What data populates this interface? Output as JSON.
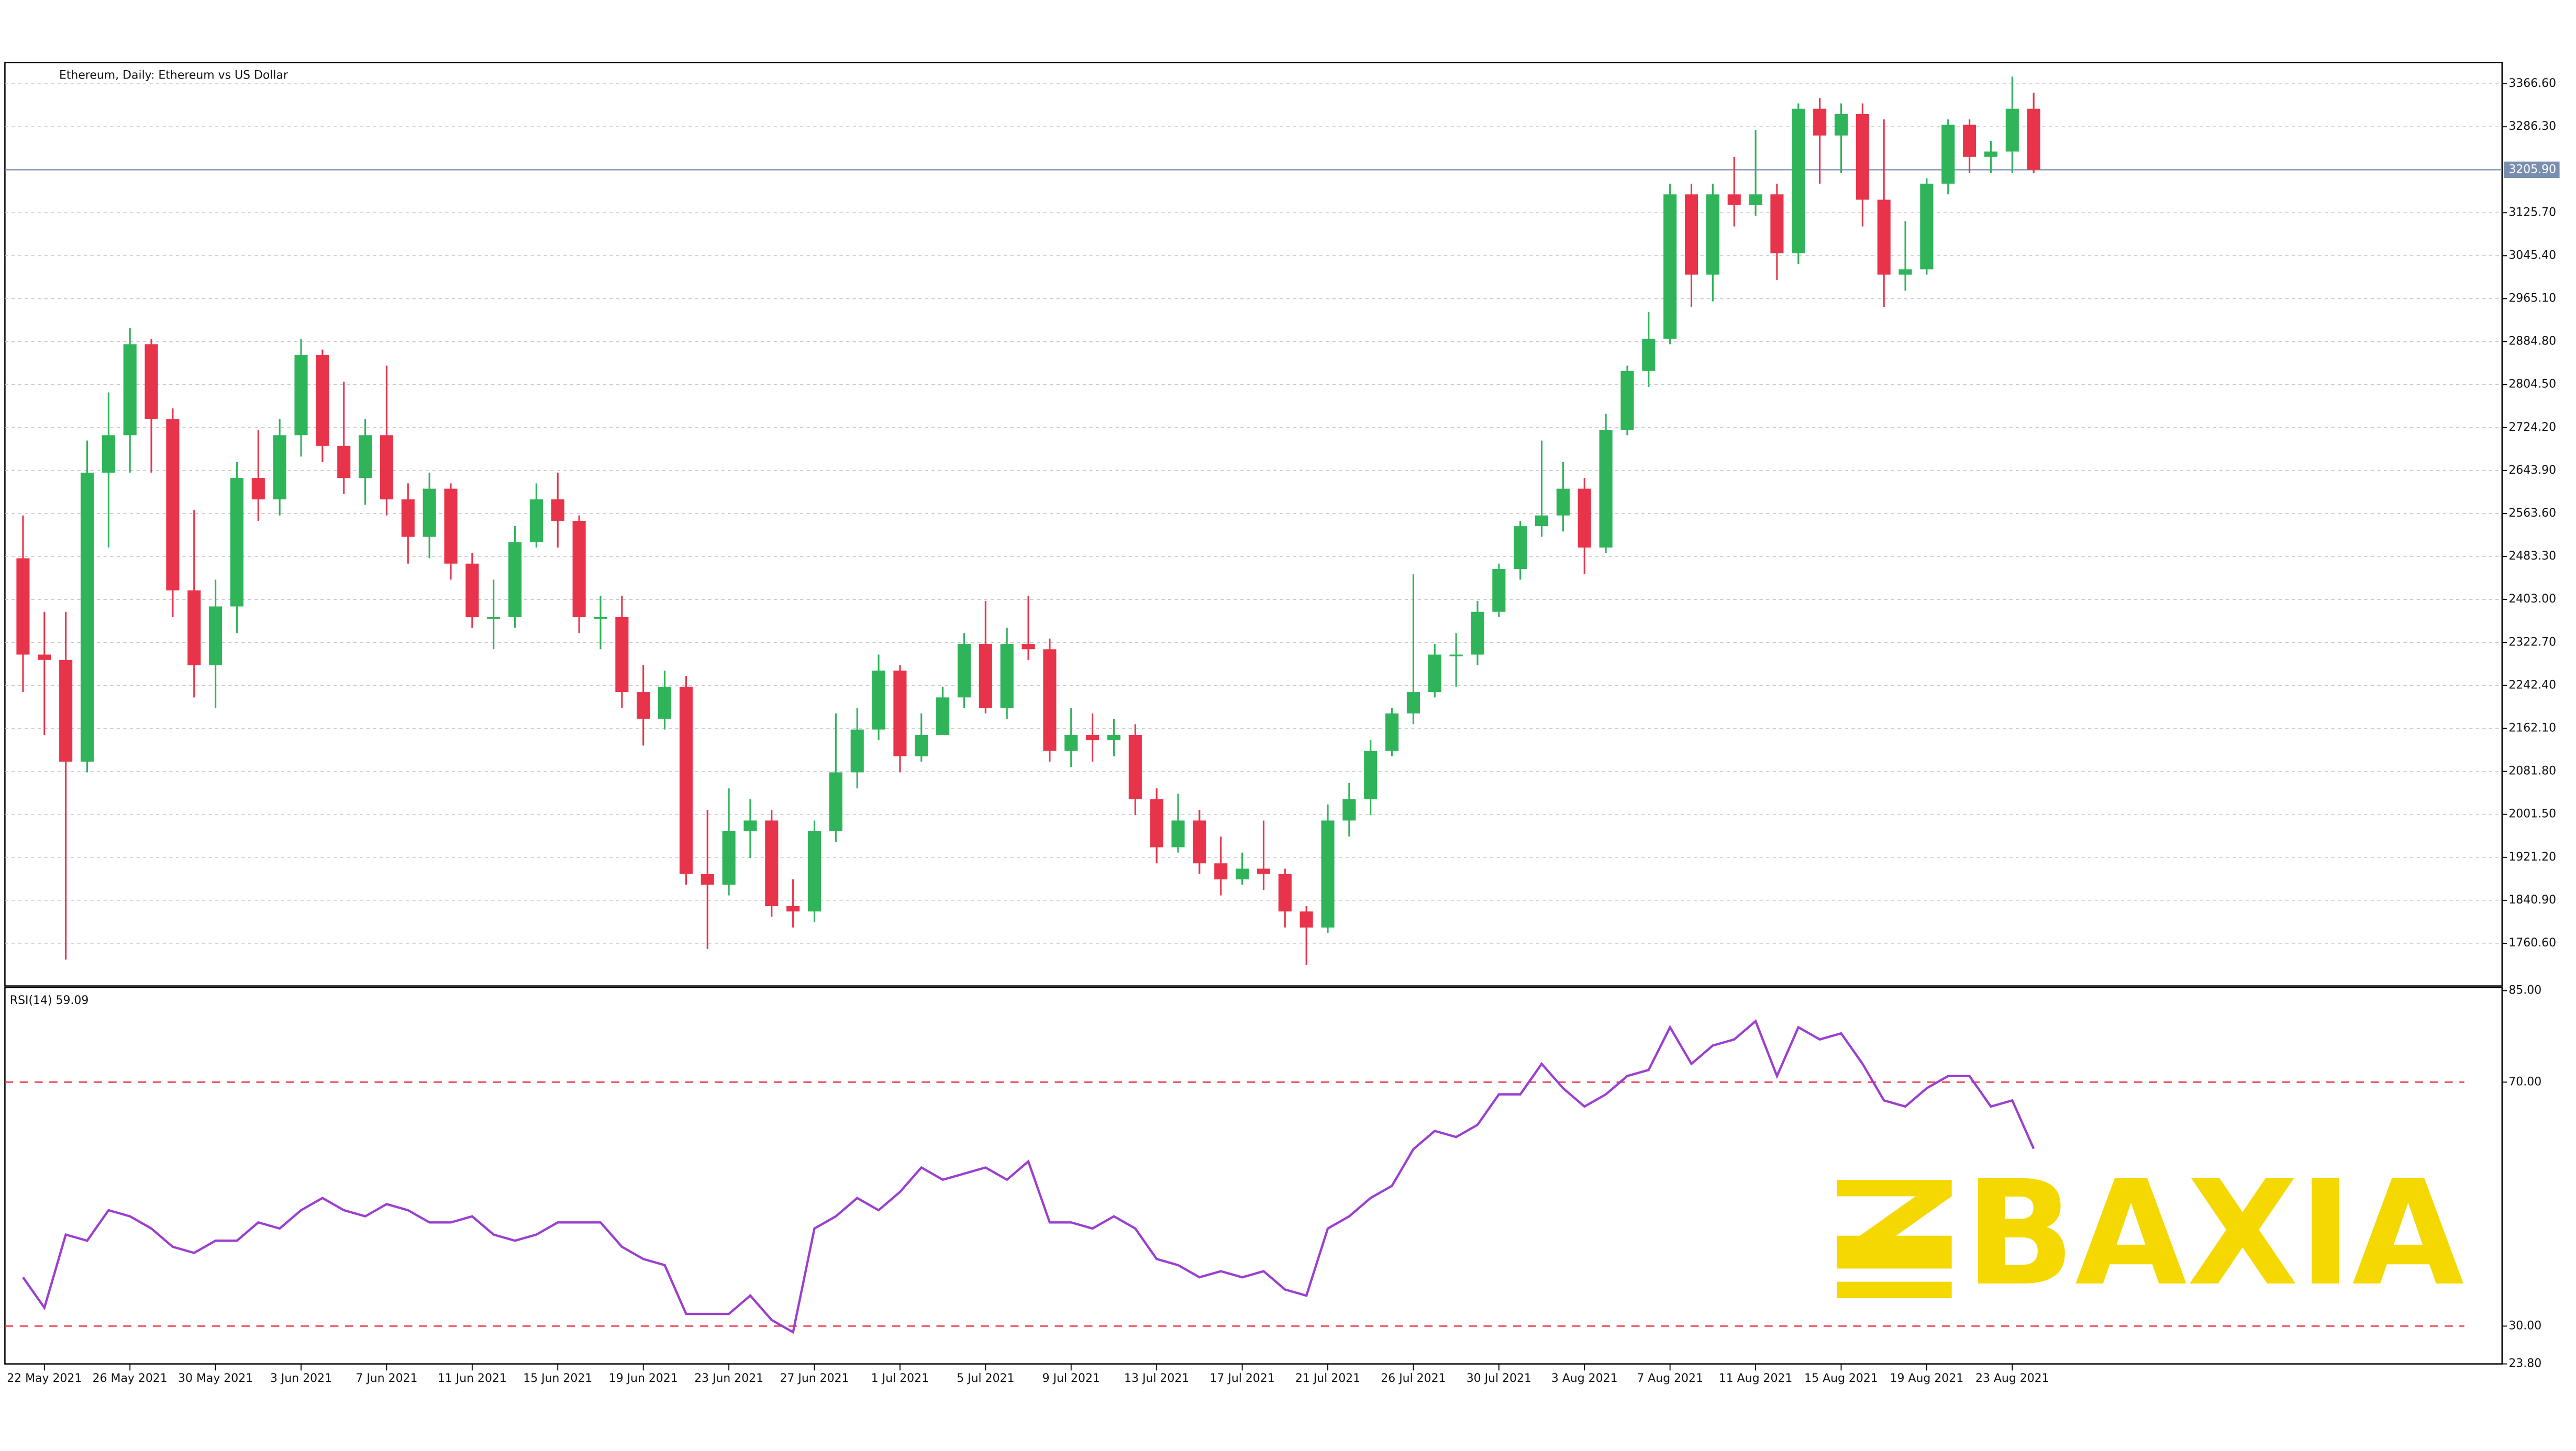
{
  "chart_data": [
    {
      "type": "candlestick",
      "title": "Ethereum, Daily:  Ethereum vs US Dollar",
      "categories": [
        null,
        "22 May 2021",
        null,
        null,
        null,
        "26 May 2021",
        null,
        null,
        null,
        "30 May 2021",
        null,
        null,
        null,
        "3 Jun 2021",
        null,
        null,
        null,
        "7 Jun 2021",
        null,
        null,
        null,
        "11 Jun 2021",
        null,
        null,
        null,
        "15 Jun 2021",
        null,
        null,
        null,
        "19 Jun 2021",
        null,
        null,
        null,
        "23 Jun 2021",
        null,
        null,
        null,
        "27 Jun 2021",
        null,
        null,
        null,
        "1 Jul 2021",
        null,
        null,
        null,
        "5 Jul 2021",
        null,
        null,
        null,
        "9 Jul 2021",
        null,
        null,
        null,
        "13 Jul 2021",
        null,
        null,
        null,
        "17 Jul 2021",
        null,
        null,
        null,
        "21 Jul 2021",
        null,
        null,
        null,
        "26 Jul 2021",
        null,
        null,
        null,
        "30 Jul 2021",
        null,
        null,
        null,
        "3 Aug 2021",
        null,
        null,
        null,
        "7 Aug 2021",
        null,
        null,
        null,
        "11 Aug 2021",
        null,
        null,
        null,
        "15 Aug 2021",
        null,
        null,
        null,
        "19 Aug 2021",
        null,
        null,
        null,
        "23 Aug 2021",
        null
      ],
      "open": [
        2480,
        2300,
        2290,
        2100,
        2640,
        2710,
        2880,
        2740,
        2420,
        2280,
        2390,
        2630,
        2590,
        2710,
        2860,
        2690,
        2630,
        2710,
        2590,
        2520,
        2610,
        2470,
        2370,
        2370,
        2510,
        2590,
        2550,
        2370,
        2370,
        2230,
        2180,
        2240,
        1890,
        1870,
        1970,
        1990,
        1830,
        1820,
        1970,
        2080,
        2160,
        2270,
        2110,
        2150,
        2220,
        2320,
        2200,
        2320,
        2310,
        2120,
        2150,
        2140,
        2150,
        2030,
        1940,
        1990,
        1910,
        1880,
        1900,
        1890,
        1820,
        1790,
        1990,
        2030,
        2120,
        2190,
        2230,
        2300,
        2300,
        2380,
        2460,
        2540,
        2560,
        2610,
        2500,
        2720,
        2830,
        2890,
        3160,
        3010,
        3160,
        3140,
        3160,
        3050,
        3320,
        3270,
        3310,
        3150,
        3010,
        3020,
        3180,
        3290,
        3230,
        3240,
        3320
      ],
      "high": [
        2560,
        2380,
        2380,
        2700,
        2790,
        2910,
        2890,
        2760,
        2570,
        2440,
        2660,
        2720,
        2740,
        2890,
        2870,
        2810,
        2740,
        2840,
        2620,
        2640,
        2620,
        2490,
        2440,
        2540,
        2620,
        2640,
        2560,
        2410,
        2410,
        2280,
        2270,
        2260,
        2010,
        2050,
        2030,
        2010,
        1880,
        1990,
        2190,
        2200,
        2300,
        2280,
        2190,
        2240,
        2340,
        2400,
        2350,
        2410,
        2330,
        2200,
        2190,
        2180,
        2170,
        2050,
        2040,
        2010,
        1960,
        1930,
        1990,
        1900,
        1830,
        2020,
        2060,
        2140,
        2200,
        2450,
        2320,
        2340,
        2400,
        2470,
        2550,
        2700,
        2660,
        2630,
        2750,
        2840,
        2940,
        3180,
        3180,
        3180,
        3230,
        3280,
        3180,
        3330,
        3340,
        3330,
        3330,
        3300,
        3110,
        3190,
        3300,
        3300,
        3260,
        3380,
        3350
      ],
      "low": [
        2230,
        2150,
        1730,
        2080,
        2500,
        2640,
        2640,
        2370,
        2220,
        2200,
        2340,
        2550,
        2560,
        2670,
        2660,
        2600,
        2580,
        2560,
        2470,
        2480,
        2440,
        2350,
        2310,
        2350,
        2500,
        2500,
        2340,
        2310,
        2200,
        2130,
        2160,
        1870,
        1750,
        1850,
        1920,
        1810,
        1790,
        1800,
        1950,
        2050,
        2140,
        2080,
        2100,
        2150,
        2200,
        2190,
        2180,
        2290,
        2100,
        2090,
        2100,
        2110,
        2000,
        1910,
        1930,
        1890,
        1850,
        1870,
        1860,
        1790,
        1720,
        1780,
        1960,
        2000,
        2110,
        2170,
        2220,
        2240,
        2280,
        2370,
        2440,
        2520,
        2530,
        2450,
        2490,
        2710,
        2800,
        2880,
        2950,
        2960,
        3100,
        3120,
        3000,
        3030,
        3180,
        3200,
        3100,
        2950,
        2980,
        3010,
        3160,
        3200,
        3200,
        3200,
        3200
      ],
      "close": [
        2300,
        2290,
        2100,
        2640,
        2710,
        2880,
        2740,
        2420,
        2280,
        2390,
        2630,
        2590,
        2710,
        2860,
        2690,
        2630,
        2710,
        2590,
        2520,
        2610,
        2470,
        2370,
        2370,
        2510,
        2590,
        2550,
        2370,
        2370,
        2230,
        2180,
        2240,
        1890,
        1870,
        1970,
        1990,
        1830,
        1820,
        1970,
        2080,
        2160,
        2270,
        2110,
        2150,
        2220,
        2320,
        2200,
        2320,
        2310,
        2120,
        2150,
        2140,
        2150,
        2030,
        1940,
        1990,
        1910,
        1880,
        1900,
        1890,
        1820,
        1790,
        1990,
        2030,
        2120,
        2190,
        2230,
        2300,
        2300,
        2380,
        2460,
        2540,
        2560,
        2610,
        2500,
        2720,
        2830,
        2890,
        3160,
        3010,
        3160,
        3140,
        3160,
        3050,
        3320,
        3270,
        3310,
        3150,
        3010,
        3020,
        3180,
        3290,
        3230,
        3240,
        3320,
        3206
      ],
      "up_color": "#2fb45a",
      "down_color": "#e8344a",
      "ylim": [
        1680.8,
        3406.5
      ],
      "yticks": [
        {
          "value": 1760.6,
          "label": "1760.60"
        },
        {
          "value": 1840.9,
          "label": "1840.90"
        },
        {
          "value": 1921.2,
          "label": "1921.20"
        },
        {
          "value": 2001.5,
          "label": "2001.50"
        },
        {
          "value": 2081.8,
          "label": "2081.80"
        },
        {
          "value": 2162.1,
          "label": "2162.10"
        },
        {
          "value": 2242.4,
          "label": "2242.40"
        },
        {
          "value": 2322.7,
          "label": "2322.70"
        },
        {
          "value": 2403,
          "label": "2403.00"
        },
        {
          "value": 2483.3,
          "label": "2483.30"
        },
        {
          "value": 2563.6,
          "label": "2563.60"
        },
        {
          "value": 2643.9,
          "label": "2643.90"
        },
        {
          "value": 2724.2,
          "label": "2724.20"
        },
        {
          "value": 2804.5,
          "label": "2804.50"
        },
        {
          "value": 2884.8,
          "label": "2884.80"
        },
        {
          "value": 2965.1,
          "label": "2965.10"
        },
        {
          "value": 3045.4,
          "label": "3045.40"
        },
        {
          "value": 3125.7,
          "label": "3125.70"
        },
        {
          "value": 3286.3,
          "label": "3286.30"
        },
        {
          "value": 3366.6,
          "label": "3366.60"
        }
      ],
      "last_price": {
        "value": 3205.9,
        "label": "3205.90"
      },
      "grid": true,
      "watermark": "BAXIA"
    },
    {
      "type": "line",
      "title": "RSI(14) 59.09",
      "color": "#9b3fd0",
      "values": [
        38,
        33,
        45,
        44,
        49,
        48,
        46,
        43,
        42,
        44,
        44,
        47,
        46,
        49,
        51,
        49,
        48,
        50,
        49,
        47,
        47,
        48,
        45,
        44,
        45,
        47,
        47,
        47,
        43,
        41,
        40,
        32,
        32,
        32,
        35,
        31,
        29,
        46,
        48,
        51,
        49,
        52,
        56,
        54,
        55,
        56,
        54,
        57,
        47,
        47,
        46,
        48,
        46,
        41,
        40,
        38,
        39,
        38,
        39,
        36,
        35,
        46,
        48,
        51,
        53,
        59,
        62,
        61,
        63,
        68,
        68,
        73,
        69,
        66,
        68,
        71,
        72,
        79,
        73,
        76,
        77,
        80,
        71,
        79,
        77,
        78,
        73,
        67,
        66,
        69,
        71,
        71,
        66,
        67,
        59.09
      ],
      "levels": [
        70,
        30
      ],
      "ylim": [
        23.8,
        85.5
      ],
      "yticks": [
        {
          "value": 23.8,
          "label": "23.80"
        },
        {
          "value": 30,
          "label": "30.00"
        },
        {
          "value": 70,
          "label": "70.00"
        },
        {
          "value": 85,
          "label": "85.00"
        }
      ]
    }
  ]
}
